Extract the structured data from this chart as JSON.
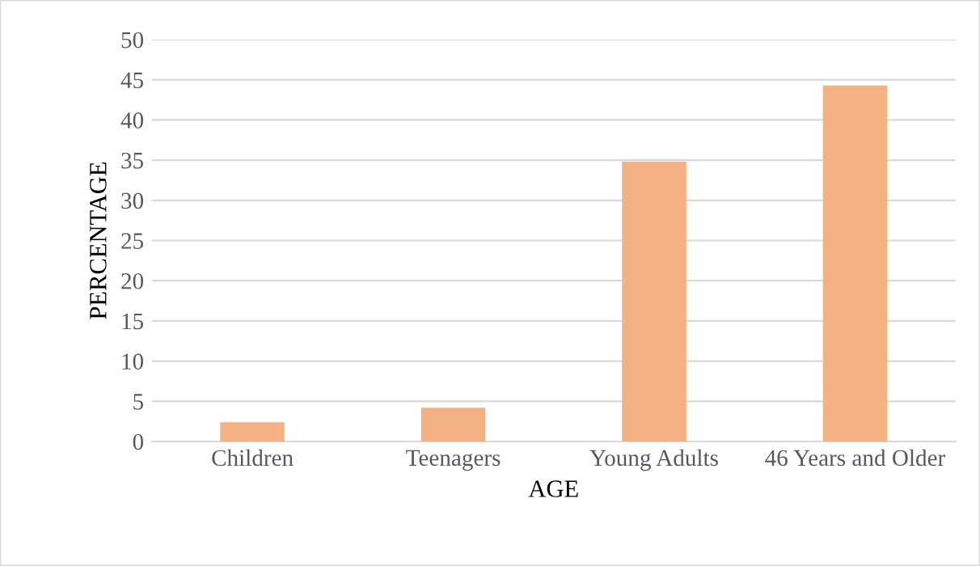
{
  "chart_data": {
    "type": "bar",
    "xlabel": "AGE",
    "ylabel": "PERCENTAGE",
    "categories": [
      "Children",
      "Teenagers",
      "Young Adults",
      "46 Years and Older"
    ],
    "values": [
      2.4,
      4.2,
      34.8,
      44.3
    ],
    "color": "#f4b183",
    "ylim": [
      0,
      50
    ],
    "yticks": [
      0,
      5,
      10,
      15,
      20,
      25,
      30,
      35,
      40,
      45,
      50
    ],
    "grid": "y"
  }
}
